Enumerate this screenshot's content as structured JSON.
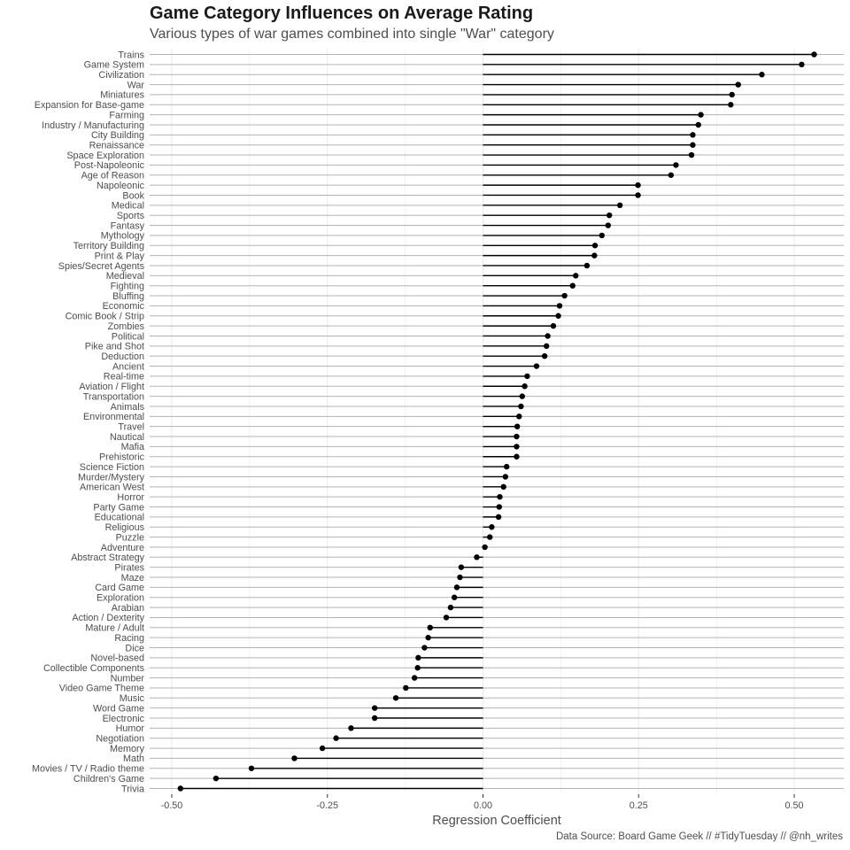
{
  "title": "Game Category Influences on Average Rating",
  "subtitle": "Various types of war games combined into single \"War\" category",
  "caption": "Data Source: Board Game Geek // #TidyTuesday // @nh_writes",
  "chart_data": {
    "type": "lollipop",
    "orientation": "horizontal",
    "xlabel": "Regression Coefficient",
    "xlim": [
      -0.5,
      0.5
    ],
    "xticks": [
      -0.5,
      -0.25,
      0.0,
      0.25,
      0.5
    ],
    "xtick_labels": [
      "-0.50",
      "-0.25",
      "0.00",
      "0.25",
      "0.50"
    ],
    "grid": true,
    "colors": {
      "line": "#000000",
      "point": "#000000",
      "grid": "#b3b3b3",
      "text": "#4d4d4d"
    },
    "categories": [
      "Trains",
      "Game System",
      "Civilization",
      "War",
      "Miniatures",
      "Expansion for Base-game",
      "Farming",
      "Industry / Manufacturing",
      "City Building",
      "Renaissance",
      "Space Exploration",
      "Post-Napoleonic",
      "Age of Reason",
      "Napoleonic",
      "Book",
      "Medical",
      "Sports",
      "Fantasy",
      "Mythology",
      "Territory Building",
      "Print & Play",
      "Spies/Secret Agents",
      "Medieval",
      "Fighting",
      "Bluffing",
      "Economic",
      "Comic Book / Strip",
      "Zombies",
      "Political",
      "Pike and Shot",
      "Deduction",
      "Ancient",
      "Real-time",
      "Aviation / Flight",
      "Transportation",
      "Animals",
      "Environmental",
      "Travel",
      "Nautical",
      "Mafia",
      "Prehistoric",
      "Science Fiction",
      "Murder/Mystery",
      "American West",
      "Horror",
      "Party Game",
      "Educational",
      "Religious",
      "Puzzle",
      "Adventure",
      "Abstract Strategy",
      "Pirates",
      "Maze",
      "Card Game",
      "Exploration",
      "Arabian",
      "Action / Dexterity",
      "Mature / Adult",
      "Racing",
      "Dice",
      "Novel-based",
      "Collectible Components",
      "Number",
      "Video Game Theme",
      "Music",
      "Word Game",
      "Electronic",
      "Humor",
      "Negotiation",
      "Memory",
      "Math",
      "Movies / TV / Radio theme",
      "Children's Game",
      "Trivia"
    ],
    "values": [
      0.532,
      0.512,
      0.448,
      0.41,
      0.4,
      0.398,
      0.35,
      0.346,
      0.337,
      0.337,
      0.335,
      0.31,
      0.302,
      0.249,
      0.249,
      0.22,
      0.203,
      0.201,
      0.191,
      0.18,
      0.179,
      0.167,
      0.149,
      0.144,
      0.131,
      0.123,
      0.121,
      0.113,
      0.104,
      0.102,
      0.099,
      0.086,
      0.071,
      0.067,
      0.063,
      0.061,
      0.058,
      0.055,
      0.054,
      0.054,
      0.054,
      0.038,
      0.036,
      0.033,
      0.027,
      0.026,
      0.025,
      0.014,
      0.011,
      0.003,
      -0.01,
      -0.035,
      -0.037,
      -0.042,
      -0.046,
      -0.052,
      -0.059,
      -0.085,
      -0.088,
      -0.094,
      -0.104,
      -0.105,
      -0.11,
      -0.124,
      -0.14,
      -0.174,
      -0.174,
      -0.212,
      -0.236,
      -0.258,
      -0.303,
      -0.372,
      -0.429,
      -0.486
    ]
  }
}
